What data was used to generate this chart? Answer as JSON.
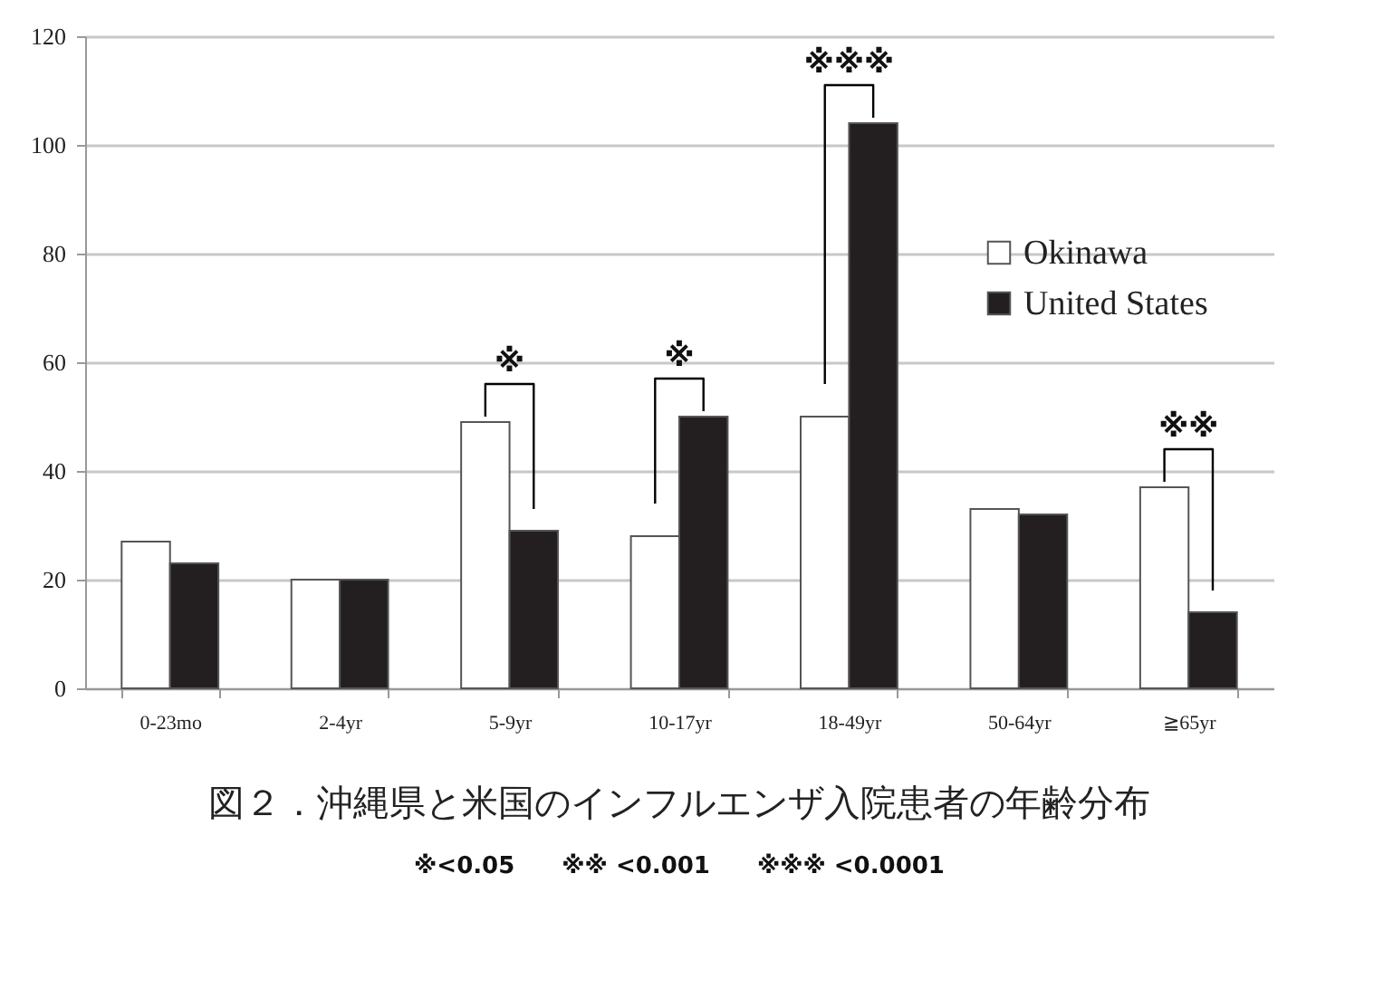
{
  "chart_data": {
    "type": "bar",
    "title": "図２．沖縄県と米国のインフルエンザ入院患者の年齢分布",
    "categories": [
      "0-23mo",
      "2-4yr",
      "5-9yr",
      "10-17yr",
      "18-49yr",
      "50-64yr",
      "≧65yr"
    ],
    "series": [
      {
        "name": "Okinawa",
        "color": "#ffffff",
        "values": [
          27,
          20,
          49,
          28,
          50,
          33,
          37
        ]
      },
      {
        "name": "United States",
        "color": "#231f20",
        "values": [
          23,
          20,
          29,
          50,
          104,
          32,
          14
        ]
      }
    ],
    "ylim": [
      0,
      120
    ],
    "yticks": [
      0,
      20,
      40,
      60,
      80,
      100,
      120
    ],
    "grid": "y",
    "legend": "right",
    "annotations": [
      {
        "text": "※",
        "x": "5-9yr",
        "y": 49
      },
      {
        "text": "※",
        "x": "10-17yr",
        "y": 50
      },
      {
        "text": "※※※",
        "x": "18-49yr",
        "y": 104
      },
      {
        "text": "※※",
        "x": "≧65yr",
        "y": 37
      },
      "※<0.05　　※※ <0.001　　※※※ <0.0001"
    ]
  }
}
